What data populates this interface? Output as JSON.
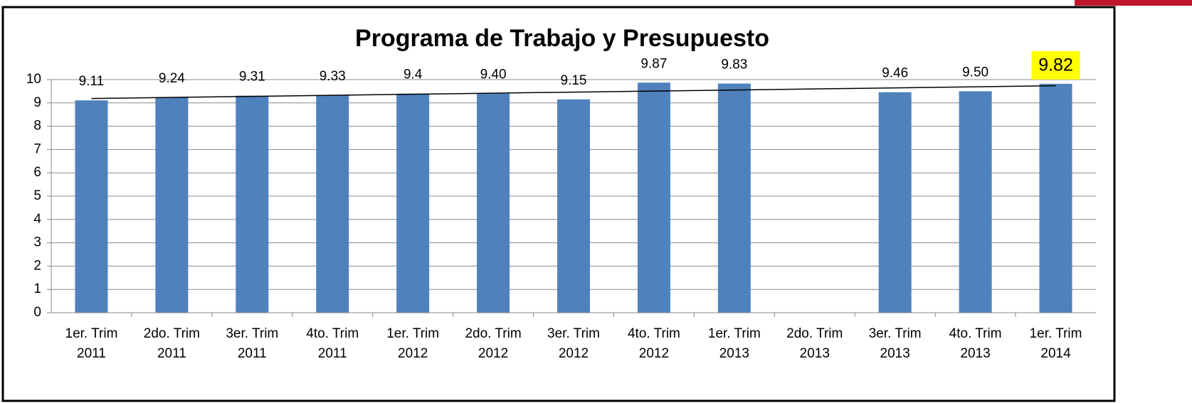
{
  "chart_data": {
    "type": "bar",
    "title": "Programa de Trabajo y Presupuesto",
    "categories": [
      "1er. Trim 2011",
      "2do. Trim 2011",
      "3er. Trim 2011",
      "4to. Trim 2011",
      "1er. Trim 2012",
      "2do. Trim 2012",
      "3er. Trim 2012",
      "4to. Trim 2012",
      "1er. Trim 2013",
      "2do. Trim 2013",
      "3er. Trim 2013",
      "4to. Trim 2013",
      "1er. Trim 2014"
    ],
    "values": [
      9.11,
      9.24,
      9.31,
      9.33,
      9.4,
      9.4,
      9.15,
      9.87,
      9.83,
      null,
      9.46,
      9.5,
      9.82
    ],
    "value_labels": [
      "9.11",
      "9.24",
      "9.31",
      "9.33",
      "9.4",
      "9.40",
      "9.15",
      "9.87",
      "9.83",
      null,
      "9.46",
      "9.50",
      "9.82"
    ],
    "color": "#4f81bd",
    "ylim": [
      0,
      10
    ],
    "yticks": [
      0,
      1,
      2,
      3,
      4,
      5,
      6,
      7,
      8,
      9,
      10
    ],
    "grid": true,
    "trendline": true,
    "highlight": {
      "index": 12,
      "color": "#ffff00"
    }
  }
}
